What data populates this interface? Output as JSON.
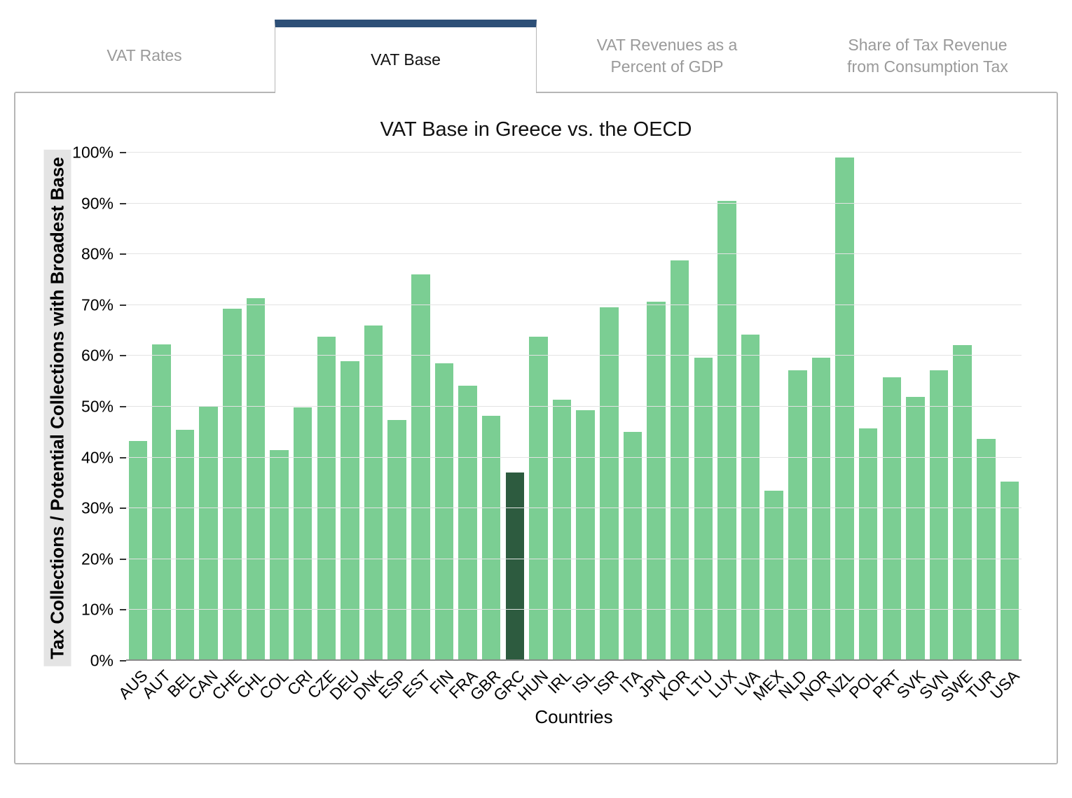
{
  "tabs": [
    {
      "label": "VAT Rates",
      "active": false
    },
    {
      "label": "VAT Base",
      "active": true
    },
    {
      "label": "VAT Revenues as a Percent of GDP",
      "active": false
    },
    {
      "label": "Share of Tax Revenue from Consumption Tax",
      "active": false
    }
  ],
  "theme": {
    "active_tab_accent": "#2d4f77",
    "panel_border": "#b6b6b6",
    "inactive_tab_text": "#9a9a9a",
    "ylabel_highlight_background": "#e4e4e4"
  },
  "chart_data": {
    "type": "bar",
    "title": "VAT Base in Greece vs. the OECD",
    "xlabel": "Countries",
    "ylabel": "Tax Collections / Potential Collections with Broadest Base",
    "ylim": [
      0,
      100
    ],
    "ytick_step": 10,
    "ytick_suffix": "%",
    "grid": true,
    "legend": "none",
    "bar_color": "#7bce93",
    "highlight_color": "#2d5b3f",
    "highlight_category": "GRC",
    "categories": [
      "AUS",
      "AUT",
      "BEL",
      "CAN",
      "CHE",
      "CHL",
      "COL",
      "CRI",
      "CZE",
      "DEU",
      "DNK",
      "ESP",
      "EST",
      "FIN",
      "FRA",
      "GBR",
      "GRC",
      "HUN",
      "IRL",
      "ISL",
      "ISR",
      "ITA",
      "JPN",
      "KOR",
      "LTU",
      "LUX",
      "LVA",
      "MEX",
      "NLD",
      "NOR",
      "NZL",
      "POL",
      "PRT",
      "SVK",
      "SVN",
      "SWE",
      "TUR",
      "USA"
    ],
    "values": [
      43.3,
      62.3,
      45.4,
      50.0,
      69.3,
      71.3,
      41.5,
      49.9,
      63.8,
      59.0,
      66.0,
      47.4,
      76.0,
      58.6,
      54.2,
      48.2,
      37.0,
      63.8,
      51.4,
      49.3,
      69.5,
      45.0,
      70.7,
      78.8,
      59.6,
      90.5,
      64.2,
      33.5,
      57.1,
      59.6,
      99.1,
      45.8,
      55.8,
      51.9,
      57.2,
      62.1,
      43.6,
      35.2
    ]
  }
}
